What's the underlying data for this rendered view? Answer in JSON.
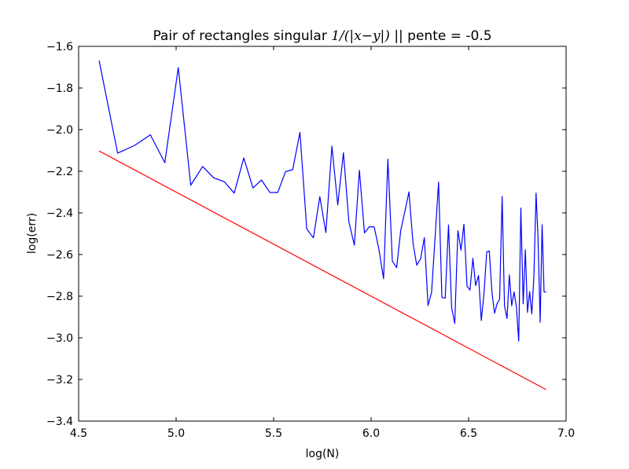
{
  "chart_data": {
    "type": "line",
    "title": {
      "prefix": "Pair of rectangles singular ",
      "math": "1/(|x−y|)",
      "suffix": " || pente = -0.5"
    },
    "xlabel": "log(N)",
    "ylabel": "log(err)",
    "xlim": [
      4.5,
      7.0
    ],
    "ylim": [
      -3.4,
      -1.6
    ],
    "xticks": [
      4.5,
      5.0,
      5.5,
      6.0,
      6.5,
      7.0
    ],
    "xtick_labels": [
      "4.5",
      "5.0",
      "5.5",
      "6.0",
      "6.5",
      "7.0"
    ],
    "yticks": [
      -3.4,
      -3.2,
      -3.0,
      -2.8,
      -2.6,
      -2.4,
      -2.2,
      -2.0,
      -1.8,
      -1.6
    ],
    "ytick_labels": [
      "−3.4",
      "−3.2",
      "−3.0",
      "−2.8",
      "−2.6",
      "−2.4",
      "−2.2",
      "−2.0",
      "−1.8",
      "−1.6"
    ],
    "grid": false,
    "series": [
      {
        "color": "#0000ff",
        "x": [
          4.605,
          4.7,
          4.787,
          4.868,
          4.942,
          5.011,
          5.075,
          5.136,
          5.193,
          5.247,
          5.298,
          5.347,
          5.394,
          5.438,
          5.481,
          5.521,
          5.561,
          5.598,
          5.635,
          5.67,
          5.704,
          5.737,
          5.768,
          5.799,
          5.829,
          5.858,
          5.886,
          5.914,
          5.94,
          5.966,
          5.991,
          6.016,
          6.04,
          6.064,
          6.086,
          6.109,
          6.131,
          6.152,
          6.173,
          6.194,
          6.215,
          6.234,
          6.254,
          6.273,
          6.292,
          6.31,
          6.328,
          6.346,
          6.363,
          6.38,
          6.397,
          6.413,
          6.429,
          6.445,
          6.461,
          6.476,
          6.492,
          6.507,
          6.522,
          6.536,
          6.551,
          6.565,
          6.579,
          6.593,
          6.606,
          6.62,
          6.633,
          6.646,
          6.659,
          6.672,
          6.684,
          6.697,
          6.709,
          6.721,
          6.733,
          6.745,
          6.757,
          6.768,
          6.78,
          6.791,
          6.802,
          6.813,
          6.824,
          6.835,
          6.846,
          6.856,
          6.867,
          6.877,
          6.887,
          6.898
        ],
        "y": [
          -1.668,
          -2.113,
          -2.076,
          -2.025,
          -2.159,
          -1.702,
          -2.267,
          -2.177,
          -2.232,
          -2.25,
          -2.305,
          -2.136,
          -2.28,
          -2.242,
          -2.302,
          -2.302,
          -2.202,
          -2.192,
          -2.013,
          -2.477,
          -2.52,
          -2.322,
          -2.495,
          -2.079,
          -2.362,
          -2.111,
          -2.443,
          -2.555,
          -2.195,
          -2.496,
          -2.466,
          -2.468,
          -2.575,
          -2.716,
          -2.142,
          -2.632,
          -2.663,
          -2.484,
          -2.394,
          -2.299,
          -2.546,
          -2.651,
          -2.62,
          -2.519,
          -2.845,
          -2.782,
          -2.52,
          -2.252,
          -2.806,
          -2.81,
          -2.458,
          -2.855,
          -2.931,
          -2.485,
          -2.579,
          -2.454,
          -2.752,
          -2.771,
          -2.618,
          -2.749,
          -2.701,
          -2.917,
          -2.786,
          -2.587,
          -2.583,
          -2.784,
          -2.882,
          -2.836,
          -2.815,
          -2.321,
          -2.846,
          -2.907,
          -2.698,
          -2.846,
          -2.779,
          -2.85,
          -3.016,
          -2.377,
          -2.837,
          -2.577,
          -2.878,
          -2.778,
          -2.885,
          -2.703,
          -2.305,
          -2.519,
          -2.925,
          -2.457,
          -2.78,
          -2.78
        ]
      },
      {
        "color": "#ff0000",
        "x": [
          4.605,
          6.898
        ],
        "y": [
          -2.1025,
          -3.249
        ]
      }
    ]
  }
}
